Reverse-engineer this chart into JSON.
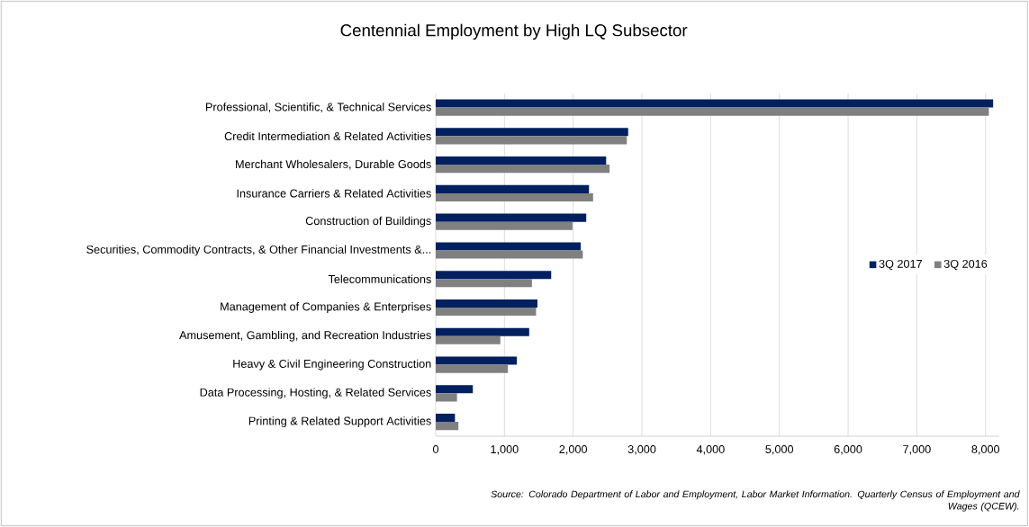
{
  "chart_data": {
    "type": "bar",
    "orientation": "horizontal",
    "title": "Centennial Employment by High LQ Subsector",
    "categories": [
      "Professional, Scientific, & Technical Services",
      "Credit Intermediation & Related Activities",
      "Merchant Wholesalers, Durable Goods",
      "Insurance Carriers & Related Activities",
      "Construction of Buildings",
      "Securities, Commodity Contracts, & Other Financial Investments &...",
      "Telecommunications",
      "Management of Companies & Enterprises",
      "Amusement, Gambling, and Recreation Industries",
      "Heavy & Civil Engineering Construction",
      "Data Processing, Hosting, & Related Services",
      "Printing & Related Support Activities"
    ],
    "series": [
      {
        "name": "3Q 2017",
        "color": "#002060",
        "values": [
          8110,
          2800,
          2480,
          2230,
          2190,
          2110,
          1680,
          1480,
          1360,
          1180,
          540,
          280
        ]
      },
      {
        "name": "3Q 2016",
        "color": "#808080",
        "values": [
          8050,
          2780,
          2530,
          2290,
          1990,
          2140,
          1400,
          1460,
          940,
          1050,
          310,
          330
        ]
      }
    ],
    "xlim": [
      0,
      8200
    ],
    "xticks": [
      0,
      {
        "value": 1000,
        "label": "1,000"
      },
      {
        "value": 2000,
        "label": "2,000"
      },
      {
        "value": 3000,
        "label": "3,000"
      },
      {
        "value": 4000,
        "label": "4,000"
      },
      {
        "value": 5000,
        "label": "5,000"
      },
      {
        "value": 6000,
        "label": "6,000"
      },
      {
        "value": 7000,
        "label": "7,000"
      },
      {
        "value": 8000,
        "label": "8,000"
      }
    ],
    "grid": "x",
    "legend": "right",
    "annotations": [
      "Source: Colorado Department of Labor and Employment, Labor Market Information. Quarterly Census of Employment and Wages (QCEW)."
    ]
  }
}
